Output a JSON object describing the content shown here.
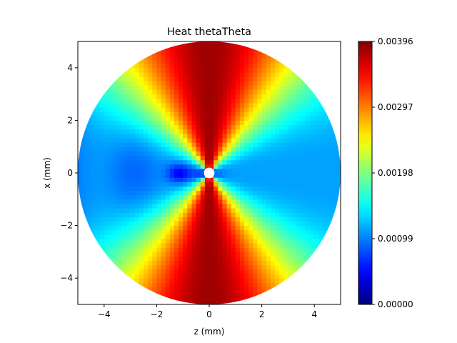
{
  "chart_data": {
    "type": "heatmap",
    "title": "Heat thetaTheta",
    "xlabel": "z (mm)",
    "ylabel": "x (mm)",
    "xlim": [
      -5,
      5
    ],
    "ylim": [
      -5,
      5
    ],
    "x_ticks": [
      -4,
      -2,
      0,
      2,
      4
    ],
    "y_ticks": [
      -4,
      -2,
      0,
      2,
      4
    ],
    "x_tick_labels": [
      "−4",
      "−2",
      "0",
      "2",
      "4"
    ],
    "y_tick_labels": [
      "−4",
      "−2",
      "0",
      "2",
      "4"
    ],
    "domain": {
      "shape": "disk",
      "outer_radius": 5,
      "inner_hole_radius": 0.2
    },
    "colormap": "jet",
    "colorbar": {
      "min": 0.0,
      "max": 0.00396,
      "ticks": [
        0.0,
        0.00099,
        0.00198,
        0.00297,
        0.00396
      ],
      "tick_labels": [
        "0.00000",
        "0.00099",
        "0.00198",
        "0.00297",
        "0.00396"
      ]
    },
    "field_description_samples": [
      {
        "angle_deg_from_x_axis": 0,
        "value": 0.00118
      },
      {
        "angle_deg_from_x_axis": 45,
        "value": 0.0025
      },
      {
        "angle_deg_from_x_axis": 90,
        "value": 0.0038
      },
      {
        "angle_deg_from_x_axis": 180,
        "value": 0.00108
      }
    ]
  }
}
